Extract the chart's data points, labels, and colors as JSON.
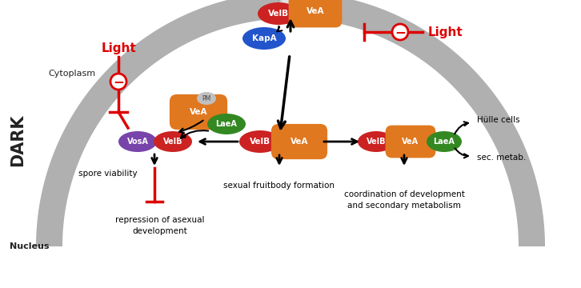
{
  "bg_color": "#ffffff",
  "colors": {
    "velb_red": "#cc2222",
    "vea_orange": "#e07820",
    "kapa_blue": "#2255cc",
    "laea_green": "#338822",
    "vosa_purple": "#7744aa",
    "gray_arc": "#aaaaaa",
    "light_red": "#dd0000"
  },
  "labels": {
    "dark": "DARK",
    "cytoplasm": "Cytoplasm",
    "nucleus": "Nucleus",
    "light": "Light",
    "spore_viability": "spore viability",
    "repression": "repression of asexual\ndevelopment",
    "sexual": "sexual fruitbody formation",
    "coordination": "coordination of development\nand secondary metabolism",
    "hulle": "Hülle cells",
    "sec_metab": "sec. metab.",
    "pm": "PM"
  }
}
